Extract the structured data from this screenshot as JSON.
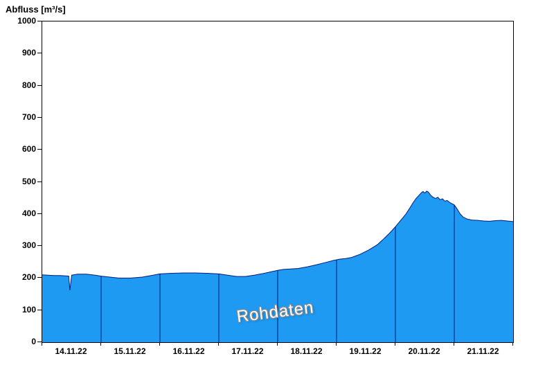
{
  "title": "Abfluss [m³/s]",
  "watermark": "Rohdaten",
  "colors": {
    "fill": "#1e9af2",
    "line": "#001a7a",
    "axis": "#000000",
    "background": "#ffffff",
    "watermark_fill": "#ffffff",
    "watermark_outline": "#8c8c8c"
  },
  "chart_data": {
    "type": "area",
    "title": "Abfluss [m³/s]",
    "ylabel": "Abfluss [m³/s]",
    "xlabel": "",
    "ylim": [
      0,
      1000
    ],
    "y_ticks": [
      0,
      100,
      200,
      300,
      400,
      500,
      600,
      700,
      800,
      900,
      1000
    ],
    "x_tick_labels": [
      "14.11.22",
      "15.11.22",
      "16.11.22",
      "17.11.22",
      "18.11.22",
      "19.11.22",
      "20.11.22",
      "21.11.22"
    ],
    "x_range_days": [
      0,
      8
    ],
    "day_boundaries": [
      0,
      1,
      2,
      3,
      4,
      5,
      6,
      7,
      8
    ],
    "grid": "vertical-day-separators-inside-fill",
    "legend": "none",
    "watermark": "Rohdaten",
    "series": [
      {
        "name": "Abfluss Rohdaten",
        "unit": "m³/s",
        "x": [
          0,
          0.1,
          0.2,
          0.3,
          0.4,
          0.45,
          0.47,
          0.5,
          0.6,
          0.75,
          0.9,
          1,
          1.15,
          1.3,
          1.5,
          1.7,
          1.85,
          2,
          2.2,
          2.4,
          2.6,
          2.8,
          3,
          3.15,
          3.3,
          3.45,
          3.6,
          3.75,
          3.9,
          4,
          4.1,
          4.2,
          4.35,
          4.5,
          4.65,
          4.8,
          4.95,
          5.05,
          5.15,
          5.25,
          5.4,
          5.55,
          5.7,
          5.8,
          5.9,
          6,
          6.1,
          6.18,
          6.25,
          6.3,
          6.35,
          6.4,
          6.44,
          6.47,
          6.5,
          6.53,
          6.56,
          6.6,
          6.64,
          6.68,
          6.72,
          6.76,
          6.8,
          6.84,
          6.88,
          6.92,
          6.96,
          7,
          7.05,
          7.1,
          7.15,
          7.22,
          7.3,
          7.4,
          7.5,
          7.6,
          7.7,
          7.8,
          7.9,
          8
        ],
        "y": [
          210,
          209,
          208,
          208,
          207,
          206,
          162,
          209,
          212,
          212,
          209,
          206,
          203,
          200,
          200,
          203,
          208,
          213,
          215,
          216,
          216,
          215,
          213,
          209,
          205,
          205,
          209,
          214,
          220,
          224,
          227,
          228,
          230,
          235,
          241,
          248,
          255,
          259,
          261,
          264,
          274,
          288,
          305,
          322,
          340,
          360,
          382,
          400,
          420,
          435,
          448,
          458,
          466,
          470,
          465,
          471,
          468,
          458,
          452,
          448,
          452,
          444,
          447,
          440,
          442,
          436,
          432,
          428,
          415,
          400,
          390,
          384,
          381,
          380,
          378,
          377,
          379,
          380,
          378,
          376
        ]
      }
    ]
  }
}
